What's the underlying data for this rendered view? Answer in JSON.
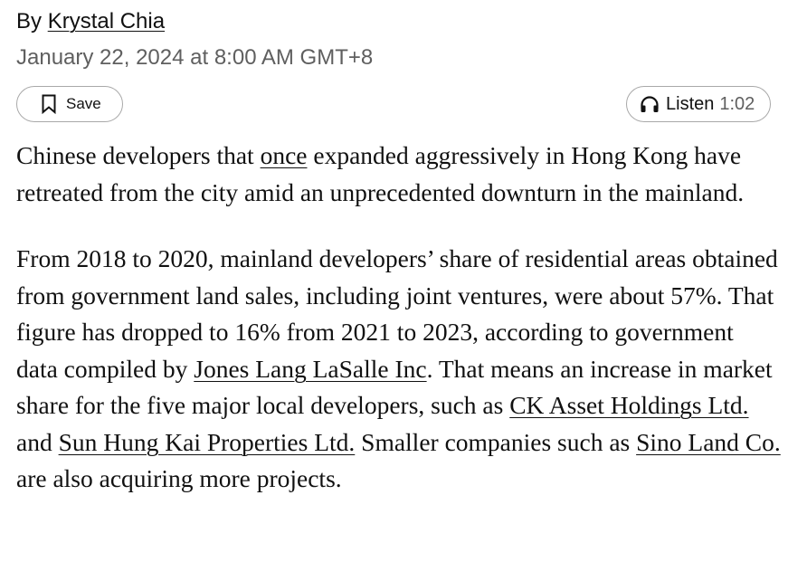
{
  "byline": {
    "prefix": "By",
    "author": "Krystal Chia"
  },
  "timestamp": "January 22, 2024 at 8:00 AM GMT+8",
  "actions": {
    "save_label": "Save",
    "save_icon": "bookmark-icon",
    "listen_label": "Listen",
    "listen_duration": "1:02",
    "listen_icon": "headphones-icon"
  },
  "article": {
    "p1": {
      "t1": "Chinese developers that ",
      "link1": "once",
      "t2": " expanded aggressively in Hong Kong have retreated from the city amid an unprecedented downturn in the mainland."
    },
    "p2": {
      "t1": "From 2018 to 2020, mainland developers’ share of residential areas obtained from government land sales, including joint ventures, were about 57%. That figure has dropped to 16% from 2021 to 2023, according to government data compiled by ",
      "link1": "Jones Lang LaSalle Inc",
      "t2": ". That means an increase in market share for the five major local developers, such as ",
      "link2": "CK Asset Holdings Ltd.",
      "t3": " and ",
      "link3": "Sun Hung Kai Properties Ltd.",
      "t4": " Smaller companies such as ",
      "link4": "Sino Land Co.",
      "t5": " are also acquiring more projects."
    }
  }
}
